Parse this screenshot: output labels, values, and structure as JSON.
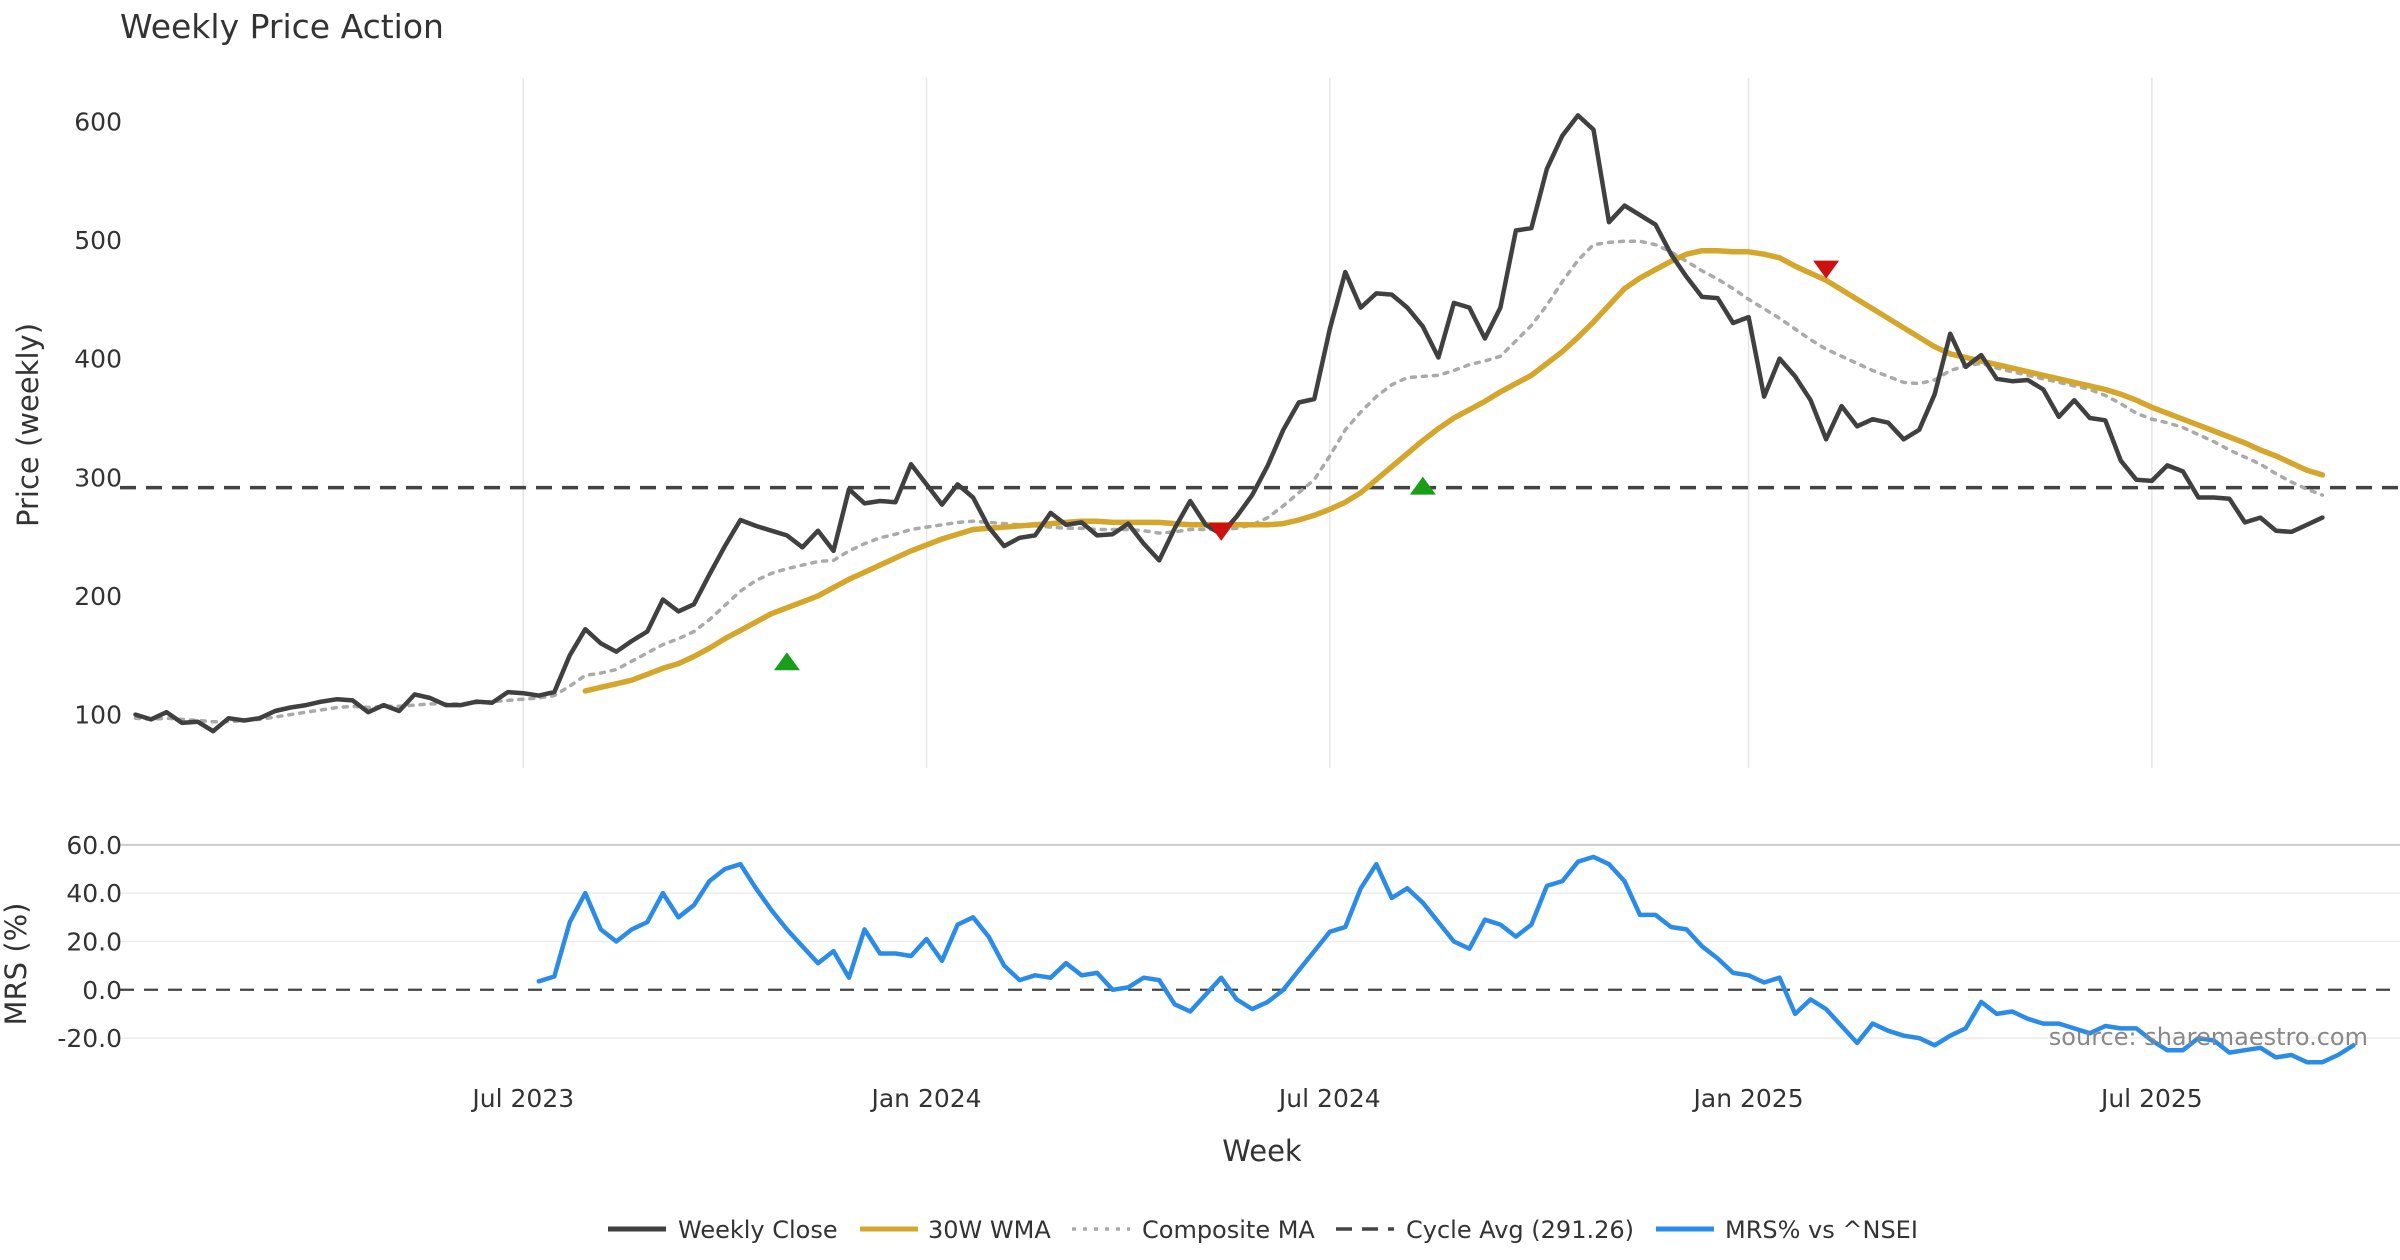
{
  "title": "Weekly Price Action",
  "colors": {
    "close": "#404040",
    "wma": "#d4a72c",
    "composite": "#aaaaaa",
    "cycle": "#444444",
    "mrs": "#2a8ce6",
    "buy": "#1a9e1a",
    "sell": "#cc1111",
    "grid": "#e6e6e6"
  },
  "chart_data": [
    {
      "type": "line",
      "panel": "price",
      "ylabel": "Price (weekly)",
      "ylim": [
        55,
        650
      ],
      "yticks": [
        100,
        200,
        300,
        400,
        500,
        600
      ],
      "xlim": [
        "2023-01-02",
        "2025-10-27"
      ],
      "grid": "vertical",
      "x_start": "2023-01-09",
      "x_step_days": 7,
      "series": [
        {
          "name": "Weekly Close",
          "style": "solid",
          "values": [
            100,
            96,
            102,
            93,
            94,
            86,
            97,
            95,
            97,
            103,
            106,
            108,
            111,
            113,
            112,
            102,
            108,
            103,
            117,
            114,
            108,
            108,
            111,
            110,
            119,
            118,
            116,
            119,
            150,
            172,
            160,
            153,
            162,
            170,
            197,
            187,
            193,
            218,
            242,
            264,
            259,
            255,
            251,
            241,
            255,
            238,
            290,
            278,
            280,
            279,
            311,
            294,
            277,
            294,
            283,
            258,
            242,
            249,
            251,
            270,
            260,
            262,
            251,
            252,
            261,
            244,
            230,
            257,
            280,
            260,
            252,
            267,
            285,
            310,
            340,
            363,
            366,
            425,
            473,
            443,
            455,
            454,
            443,
            427,
            401,
            447,
            443,
            417,
            443,
            508,
            510,
            560,
            588,
            605,
            593,
            515,
            529,
            521,
            513,
            488,
            469,
            452,
            451,
            430,
            435,
            368,
            400,
            385,
            365,
            332,
            360,
            343,
            349,
            346,
            332,
            340,
            370,
            421,
            393,
            403,
            383,
            381,
            382,
            374,
            351,
            365,
            350,
            348,
            314,
            298,
            297,
            310,
            305,
            283,
            283,
            282,
            262,
            266,
            255,
            254,
            260,
            266
          ]
        },
        {
          "name": "30W WMA",
          "style": "solid",
          "start_index": 29,
          "values": [
            120,
            123,
            126,
            129,
            134,
            139,
            143,
            149,
            156,
            164,
            171,
            178,
            185,
            190,
            195,
            200,
            207,
            214,
            220,
            226,
            232,
            238,
            243,
            248,
            252,
            256,
            257,
            258,
            259,
            260,
            261,
            262,
            263,
            263,
            262,
            262,
            262,
            262,
            261,
            260,
            260,
            260,
            260,
            260,
            260,
            261,
            264,
            268,
            273,
            279,
            287,
            298,
            309,
            320,
            331,
            341,
            350,
            357,
            364,
            372,
            379,
            386,
            396,
            406,
            418,
            431,
            445,
            459,
            468,
            475,
            482,
            488,
            491,
            491,
            490,
            490,
            488,
            485,
            478,
            472,
            466,
            458,
            450,
            442,
            434,
            426,
            418,
            410,
            404,
            401,
            398,
            395,
            392,
            389,
            386,
            383,
            380,
            377,
            374,
            370,
            365,
            359,
            354,
            349,
            344,
            339,
            334,
            329,
            323,
            318,
            312,
            306,
            302
          ]
        },
        {
          "name": "Composite MA",
          "style": "dotted",
          "values": [
            97,
            96,
            97,
            96,
            95,
            94,
            94,
            95,
            96,
            98,
            100,
            102,
            104,
            106,
            107,
            106,
            107,
            107,
            108,
            109,
            109,
            109,
            110,
            111,
            112,
            113,
            114,
            116,
            124,
            133,
            135,
            138,
            145,
            152,
            159,
            164,
            170,
            180,
            192,
            204,
            213,
            219,
            223,
            226,
            229,
            230,
            238,
            244,
            249,
            252,
            256,
            258,
            260,
            262,
            263,
            262,
            261,
            260,
            259,
            258,
            257,
            257,
            256,
            256,
            256,
            255,
            253,
            254,
            256,
            256,
            256,
            257,
            260,
            266,
            276,
            287,
            298,
            318,
            340,
            355,
            368,
            378,
            384,
            385,
            386,
            390,
            395,
            398,
            402,
            415,
            428,
            445,
            465,
            483,
            496,
            498,
            499,
            499,
            496,
            490,
            482,
            474,
            467,
            459,
            450,
            442,
            434,
            425,
            416,
            408,
            402,
            396,
            390,
            385,
            380,
            379,
            382,
            390,
            394,
            396,
            392,
            389,
            386,
            383,
            380,
            377,
            374,
            369,
            362,
            354,
            349,
            346,
            342,
            336,
            330,
            323,
            317,
            311,
            303,
            296,
            290,
            285
          ]
        },
        {
          "name": "Cycle Avg (291.26)",
          "style": "dashed",
          "value": 291.26
        }
      ],
      "signals": [
        {
          "type": "buy",
          "date": "2023-10-30",
          "y": 145
        },
        {
          "type": "sell",
          "date": "2024-05-13",
          "y": 254
        },
        {
          "type": "buy",
          "date": "2024-08-12",
          "y": 293
        },
        {
          "type": "sell",
          "date": "2025-02-10",
          "y": 475
        }
      ]
    },
    {
      "type": "line",
      "panel": "mrs",
      "xlabel": "Week",
      "ylabel": "MRS (%)",
      "ylim": [
        -27,
        62
      ],
      "yticks": [
        "60.0",
        "40.0",
        "20.0",
        "0.0",
        "-20.0"
      ],
      "xticks": [
        {
          "label": "Jul 2023",
          "date": "2023-07-03"
        },
        {
          "label": "Jan 2024",
          "date": "2024-01-01"
        },
        {
          "label": "Jul 2024",
          "date": "2024-07-01"
        },
        {
          "label": "Jan 2025",
          "date": "2025-01-06"
        },
        {
          "label": "Jul 2025",
          "date": "2025-07-07"
        }
      ],
      "zero_line": 0,
      "series": [
        {
          "name": "MRS% vs ^NSEI",
          "style": "solid",
          "start_index": 26,
          "values": [
            3.5,
            5.5,
            28,
            40,
            25,
            20,
            25,
            28,
            40,
            30,
            35,
            45,
            50,
            52,
            42,
            33,
            25,
            18,
            11,
            16,
            5,
            25,
            15,
            15,
            14,
            21,
            12,
            27,
            30,
            22,
            10,
            4,
            6,
            5,
            11,
            6,
            7,
            0,
            1,
            5,
            4,
            -6,
            -9,
            -2,
            5,
            -4,
            -8,
            -5,
            0,
            8,
            16,
            24,
            26,
            42,
            52,
            38,
            42,
            36,
            28,
            20,
            17,
            29,
            27,
            22,
            27,
            43,
            45,
            53,
            55,
            52,
            45,
            31,
            31,
            26,
            25,
            18,
            13,
            7,
            6,
            3,
            5,
            -10,
            -4,
            -8,
            -15,
            -22,
            -14,
            -17,
            -19,
            -20,
            -23,
            -19,
            -16,
            -5,
            -10,
            -9,
            -12,
            -14,
            -14,
            -16,
            -18,
            -15,
            -16,
            -16,
            -21,
            -25,
            -25,
            -20,
            -21,
            -26,
            -25,
            -24,
            -28,
            -27,
            -30,
            -30,
            -27,
            -23
          ]
        }
      ]
    }
  ],
  "legend": [
    {
      "label": "Weekly Close",
      "style": "solid",
      "color": "#404040"
    },
    {
      "label": "30W WMA",
      "style": "solid",
      "color": "#d4a72c"
    },
    {
      "label": "Composite MA",
      "style": "dotted",
      "color": "#aaaaaa"
    },
    {
      "label": "Cycle Avg (291.26)",
      "style": "dashed",
      "color": "#444444"
    },
    {
      "label": "MRS% vs ^NSEI",
      "style": "solid",
      "color": "#2a8ce6"
    }
  ],
  "watermark": "source: sharemaestro.com"
}
